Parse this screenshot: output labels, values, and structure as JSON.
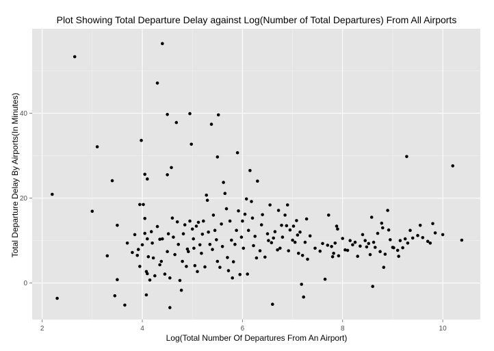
{
  "chart_data": {
    "type": "scatter",
    "title": "Plot Showing Total Departure Delay against Log(Number of Total Departures) From All Airports",
    "xlabel": "Log(Total Number Of Departures From An Airport)",
    "ylabel": "Total Departure Delay By Airports(In Minutes)",
    "xlim": [
      1.8,
      10.75
    ],
    "ylim": [
      -8.6,
      59.9
    ],
    "x_ticks": [
      2,
      4,
      6,
      8,
      10
    ],
    "y_ticks": [
      0,
      20,
      40
    ],
    "x_tick_labels": [
      "2",
      "4",
      "6",
      "8",
      "10"
    ],
    "y_tick_labels": [
      "0",
      "20",
      "40"
    ],
    "grid": true,
    "colors": {
      "panel": "#e5e5e5",
      "grid_major": "#ffffff",
      "grid_minor": "#f2f2f2",
      "point": "#000000"
    },
    "points": [
      [
        2.2,
        20.9
      ],
      [
        2.3,
        -3.6
      ],
      [
        2.65,
        53.3
      ],
      [
        3.0,
        16.9
      ],
      [
        3.1,
        32.1
      ],
      [
        3.3,
        6.4
      ],
      [
        3.4,
        24.1
      ],
      [
        3.45,
        -3.0
      ],
      [
        3.5,
        13.6
      ],
      [
        3.5,
        0.8
      ],
      [
        3.65,
        -5.2
      ],
      [
        3.7,
        9.4
      ],
      [
        3.8,
        7.2
      ],
      [
        3.85,
        11.4
      ],
      [
        3.9,
        6.5
      ],
      [
        3.92,
        7.9
      ],
      [
        3.95,
        3.9
      ],
      [
        3.95,
        18.5
      ],
      [
        3.98,
        33.6
      ],
      [
        4.0,
        9.0
      ],
      [
        4.02,
        18.5
      ],
      [
        4.05,
        25.6
      ],
      [
        4.05,
        15.2
      ],
      [
        4.05,
        11.7
      ],
      [
        4.08,
        -2.8
      ],
      [
        4.08,
        2.7
      ],
      [
        4.1,
        10.4
      ],
      [
        4.1,
        24.5
      ],
      [
        4.1,
        2.2
      ],
      [
        4.12,
        6.2
      ],
      [
        4.15,
        0.7
      ],
      [
        4.18,
        12.1
      ],
      [
        4.2,
        9.4
      ],
      [
        4.22,
        5.9
      ],
      [
        4.25,
        1.7
      ],
      [
        4.3,
        47.1
      ],
      [
        4.3,
        13.3
      ],
      [
        4.35,
        4.3
      ],
      [
        4.35,
        10.3
      ],
      [
        4.38,
        5.1
      ],
      [
        4.4,
        56.4
      ],
      [
        4.4,
        10.4
      ],
      [
        4.45,
        2.1
      ],
      [
        4.5,
        39.7
      ],
      [
        4.5,
        25.5
      ],
      [
        4.5,
        7.4
      ],
      [
        4.52,
        11.6
      ],
      [
        4.55,
        1.2
      ],
      [
        4.55,
        -5.8
      ],
      [
        4.58,
        27.2
      ],
      [
        4.6,
        15.3
      ],
      [
        4.62,
        10.8
      ],
      [
        4.65,
        6.7
      ],
      [
        4.68,
        37.8
      ],
      [
        4.7,
        14.4
      ],
      [
        4.72,
        9.1
      ],
      [
        4.75,
        0.6
      ],
      [
        4.78,
        -1.7
      ],
      [
        4.8,
        5.1
      ],
      [
        4.82,
        11.6
      ],
      [
        4.85,
        13.7
      ],
      [
        4.88,
        3.9
      ],
      [
        4.9,
        8.0
      ],
      [
        4.92,
        7.4
      ],
      [
        4.95,
        39.9
      ],
      [
        4.95,
        14.6
      ],
      [
        4.98,
        32.7
      ],
      [
        5.0,
        12.7
      ],
      [
        5.02,
        10.4
      ],
      [
        5.03,
        8.2
      ],
      [
        5.05,
        4.1
      ],
      [
        5.08,
        13.4
      ],
      [
        5.1,
        2.7
      ],
      [
        5.12,
        14.3
      ],
      [
        5.15,
        9.0
      ],
      [
        5.18,
        7.0
      ],
      [
        5.2,
        11.5
      ],
      [
        5.22,
        14.6
      ],
      [
        5.25,
        3.8
      ],
      [
        5.28,
        20.7
      ],
      [
        5.3,
        19.5
      ],
      [
        5.32,
        12.0
      ],
      [
        5.35,
        9.1
      ],
      [
        5.38,
        37.4
      ],
      [
        5.4,
        7.9
      ],
      [
        5.42,
        16.0
      ],
      [
        5.45,
        12.4
      ],
      [
        5.48,
        10.2
      ],
      [
        5.5,
        29.7
      ],
      [
        5.5,
        5.1
      ],
      [
        5.52,
        39.6
      ],
      [
        5.55,
        3.7
      ],
      [
        5.58,
        13.9
      ],
      [
        5.6,
        8.6
      ],
      [
        5.62,
        23.7
      ],
      [
        5.65,
        21.1
      ],
      [
        5.68,
        17.5
      ],
      [
        5.7,
        6.0
      ],
      [
        5.72,
        2.9
      ],
      [
        5.75,
        14.6
      ],
      [
        5.78,
        10.1
      ],
      [
        5.8,
        1.2
      ],
      [
        5.82,
        5.0
      ],
      [
        5.85,
        9.1
      ],
      [
        5.88,
        12.4
      ],
      [
        5.9,
        30.7
      ],
      [
        5.92,
        17.0
      ],
      [
        5.95,
        2.0
      ],
      [
        5.98,
        10.8
      ],
      [
        6.0,
        14.6
      ],
      [
        6.02,
        8.2
      ],
      [
        6.05,
        16.2
      ],
      [
        6.08,
        19.8
      ],
      [
        6.1,
        2.1
      ],
      [
        6.12,
        12.4
      ],
      [
        6.15,
        26.5
      ],
      [
        6.18,
        19.2
      ],
      [
        6.2,
        15.3
      ],
      [
        6.22,
        8.8
      ],
      [
        6.25,
        11.0
      ],
      [
        6.28,
        5.9
      ],
      [
        6.3,
        24.0
      ],
      [
        6.35,
        7.6
      ],
      [
        6.38,
        13.7
      ],
      [
        6.4,
        16.1
      ],
      [
        6.45,
        6.1
      ],
      [
        6.5,
        11.6
      ],
      [
        6.52,
        10.0
      ],
      [
        6.55,
        18.4
      ],
      [
        6.58,
        9.5
      ],
      [
        6.6,
        -5.0
      ],
      [
        6.62,
        10.6
      ],
      [
        6.65,
        12.1
      ],
      [
        6.7,
        7.8
      ],
      [
        6.72,
        17.1
      ],
      [
        6.75,
        8.2
      ],
      [
        6.78,
        13.6
      ],
      [
        6.8,
        10.8
      ],
      [
        6.85,
        16.0
      ],
      [
        6.88,
        13.5
      ],
      [
        6.9,
        18.4
      ],
      [
        6.92,
        7.6
      ],
      [
        6.95,
        12.5
      ],
      [
        7.0,
        10.1
      ],
      [
        7.02,
        13.4
      ],
      [
        7.05,
        9.6
      ],
      [
        7.08,
        14.7
      ],
      [
        7.1,
        11.3
      ],
      [
        7.12,
        7.0
      ],
      [
        7.15,
        12.0
      ],
      [
        7.18,
        -0.3
      ],
      [
        7.2,
        6.5
      ],
      [
        7.22,
        -3.3
      ],
      [
        7.25,
        9.6
      ],
      [
        7.28,
        15.1
      ],
      [
        7.3,
        5.6
      ],
      [
        7.35,
        11.1
      ],
      [
        7.45,
        8.2
      ],
      [
        7.55,
        7.5
      ],
      [
        7.6,
        9.3
      ],
      [
        7.65,
        0.9
      ],
      [
        7.7,
        8.9
      ],
      [
        7.72,
        16.0
      ],
      [
        7.78,
        8.6
      ],
      [
        7.8,
        6.2
      ],
      [
        7.82,
        7.0
      ],
      [
        7.85,
        9.4
      ],
      [
        7.88,
        13.4
      ],
      [
        7.9,
        12.7
      ],
      [
        7.92,
        6.4
      ],
      [
        8.0,
        10.5
      ],
      [
        8.05,
        7.8
      ],
      [
        8.1,
        7.7
      ],
      [
        8.15,
        10.0
      ],
      [
        8.2,
        9.0
      ],
      [
        8.25,
        9.6
      ],
      [
        8.3,
        6.3
      ],
      [
        8.35,
        8.7
      ],
      [
        8.4,
        11.4
      ],
      [
        8.45,
        10.0
      ],
      [
        8.48,
        8.5
      ],
      [
        8.52,
        9.3
      ],
      [
        8.55,
        6.7
      ],
      [
        8.58,
        15.5
      ],
      [
        8.6,
        -0.8
      ],
      [
        8.62,
        9.6
      ],
      [
        8.65,
        8.4
      ],
      [
        8.7,
        11.7
      ],
      [
        8.75,
        7.4
      ],
      [
        8.78,
        14.1
      ],
      [
        8.8,
        13.0
      ],
      [
        8.82,
        3.7
      ],
      [
        8.85,
        6.8
      ],
      [
        8.9,
        17.1
      ],
      [
        8.92,
        12.5
      ],
      [
        8.95,
        10.2
      ],
      [
        9.0,
        8.4
      ],
      [
        9.02,
        8.3
      ],
      [
        9.1,
        7.7
      ],
      [
        9.12,
        6.3
      ],
      [
        9.15,
        10.0
      ],
      [
        9.2,
        8.3
      ],
      [
        9.25,
        10.4
      ],
      [
        9.28,
        29.8
      ],
      [
        9.3,
        9.4
      ],
      [
        9.35,
        12.4
      ],
      [
        9.4,
        10.6
      ],
      [
        9.5,
        11.2
      ],
      [
        9.55,
        13.6
      ],
      [
        9.6,
        10.7
      ],
      [
        9.7,
        9.8
      ],
      [
        9.75,
        9.4
      ],
      [
        9.8,
        14.0
      ],
      [
        9.85,
        11.8
      ],
      [
        10.0,
        11.4
      ],
      [
        10.2,
        27.6
      ],
      [
        10.38,
        10.1
      ]
    ]
  }
}
